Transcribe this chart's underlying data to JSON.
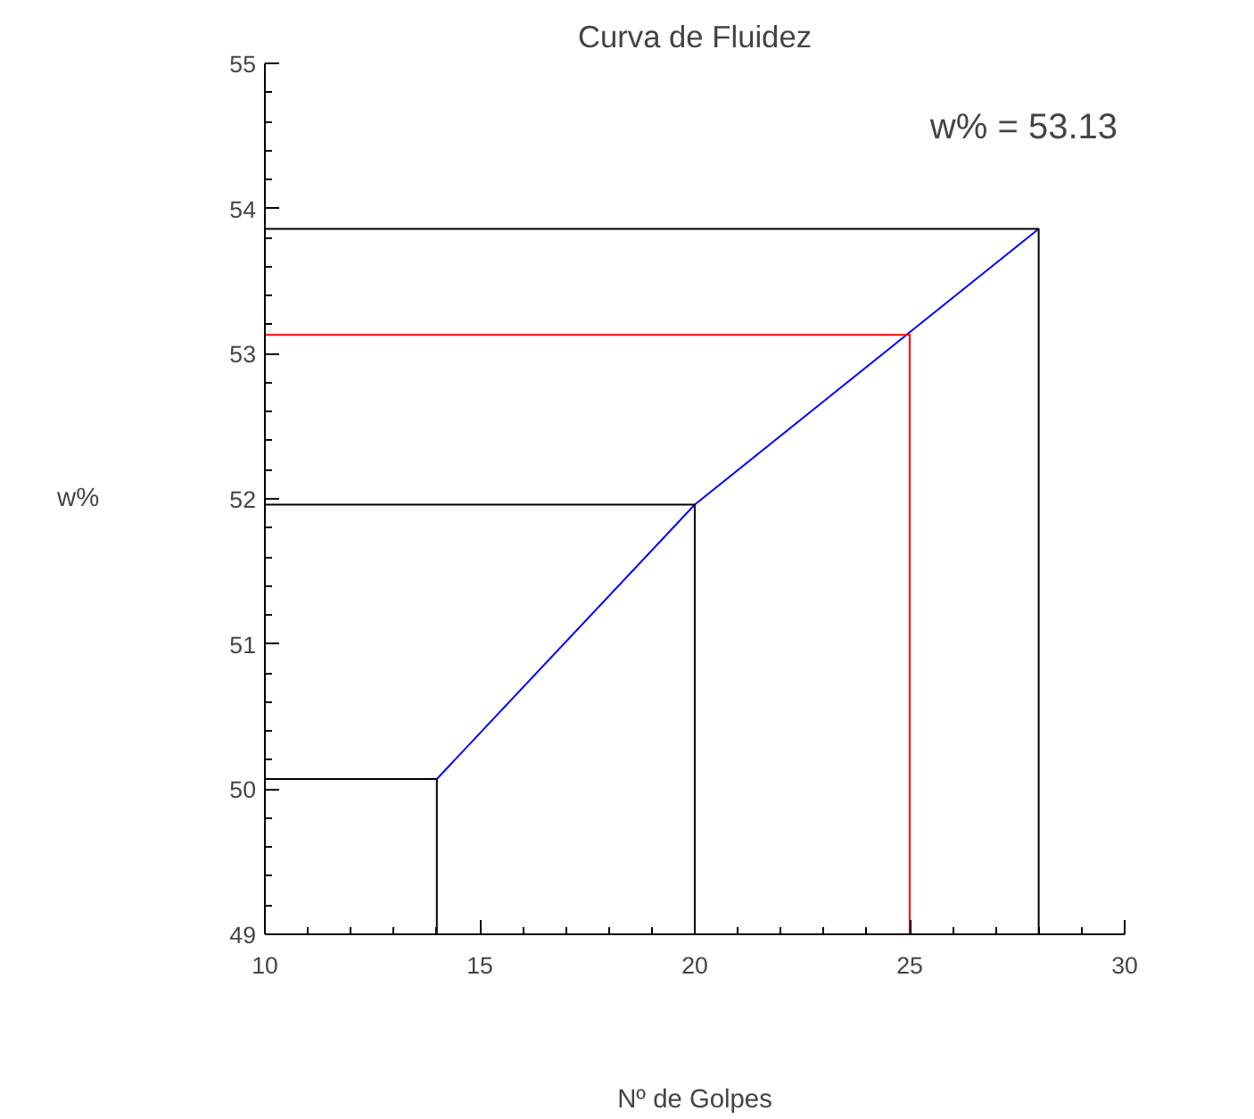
{
  "chart_data": {
    "type": "line",
    "title": "Curva de Fluidez",
    "xlabel": "Nº de Golpes",
    "ylabel": "w%",
    "annotations": [
      "w% = 53.13"
    ],
    "xlim": [
      10,
      30
    ],
    "ylim": [
      49,
      55
    ],
    "xticks": [
      10,
      {
        "value": 11,
        "label": null
      },
      {
        "value": 12,
        "label": null
      },
      {
        "value": 13,
        "label": null
      },
      {
        "value": 14,
        "label": null
      },
      15,
      {
        "value": 16,
        "label": null
      },
      {
        "value": 17,
        "label": null
      },
      {
        "value": 18,
        "label": null
      },
      {
        "value": 19,
        "label": null
      },
      20,
      {
        "value": 21,
        "label": null
      },
      {
        "value": 22,
        "label": null
      },
      {
        "value": 23,
        "label": null
      },
      {
        "value": 24,
        "label": null
      },
      25,
      {
        "value": 26,
        "label": null
      },
      {
        "value": 27,
        "label": null
      },
      {
        "value": 28,
        "label": null
      },
      {
        "value": 29,
        "label": null
      },
      30
    ],
    "yticks": [
      49,
      {
        "value": 49.2,
        "label": null
      },
      {
        "value": 49.4,
        "label": null
      },
      {
        "value": 49.6,
        "label": null
      },
      {
        "value": 49.8,
        "label": null
      },
      50,
      {
        "value": 50.2,
        "label": null
      },
      {
        "value": 50.4,
        "label": null
      },
      {
        "value": 50.6,
        "label": null
      },
      {
        "value": 50.8,
        "label": null
      },
      51,
      {
        "value": 51.2,
        "label": null
      },
      {
        "value": 51.4,
        "label": null
      },
      {
        "value": 51.6,
        "label": null
      },
      {
        "value": 51.8,
        "label": null
      },
      52,
      {
        "value": 52.2,
        "label": null
      },
      {
        "value": 52.4,
        "label": null
      },
      {
        "value": 52.6,
        "label": null
      },
      {
        "value": 52.8,
        "label": null
      },
      53,
      {
        "value": 53.2,
        "label": null
      },
      {
        "value": 53.4,
        "label": null
      },
      {
        "value": 53.6,
        "label": null
      },
      {
        "value": 53.8,
        "label": null
      },
      54,
      {
        "value": 54.2,
        "label": null
      },
      {
        "value": 54.4,
        "label": null
      },
      {
        "value": 54.6,
        "label": null
      },
      {
        "value": 54.8,
        "label": null
      },
      55
    ],
    "grid": false,
    "marker": "none",
    "line_style": "solid",
    "series": [
      {
        "color": "#0000ff",
        "x": [
          14,
          20,
          28
        ],
        "values": [
          50.07,
          51.96,
          53.86
        ]
      },
      {
        "color": "#000000",
        "x": [
          10,
          14,
          14
        ],
        "values": [
          50.07,
          50.07,
          49
        ]
      },
      {
        "color": "#000000",
        "x": [
          10,
          20,
          20
        ],
        "values": [
          51.96,
          51.96,
          49
        ]
      },
      {
        "color": "#000000",
        "x": [
          10,
          28,
          28
        ],
        "values": [
          53.86,
          53.86,
          49
        ]
      },
      {
        "color": "#ff0000",
        "x": [
          10,
          25,
          25
        ],
        "values": [
          53.13,
          53.13,
          49
        ]
      }
    ]
  }
}
